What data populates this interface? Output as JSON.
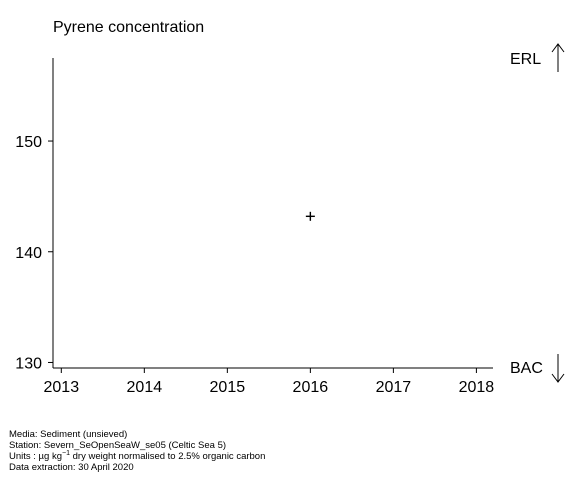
{
  "chart_data": {
    "type": "scatter",
    "title": "Pyrene concentration",
    "xlabel": "",
    "ylabel": "",
    "x_ticks": [
      2013,
      2014,
      2015,
      2016,
      2017,
      2018
    ],
    "y_ticks": [
      130,
      140,
      150
    ],
    "xlim": [
      2012.9,
      2018.2
    ],
    "ylim": [
      129.5,
      157.5
    ],
    "points": [
      {
        "x": 2016,
        "y": 143.2,
        "marker": "+"
      }
    ],
    "reference_lines": [
      {
        "label": "ERL",
        "direction": "up"
      },
      {
        "label": "BAC",
        "direction": "down"
      }
    ],
    "grid": false
  },
  "footer": {
    "media": "Media: Sediment (unsieved)",
    "station": "Station: Severn_SeOpenSeaW_se05 (Celtic Sea 5)",
    "units_prefix": "Units : µg kg",
    "units_exp": "−1",
    "units_suffix": " dry weight normalised to 2.5% organic carbon",
    "extraction": "Data extraction: 30 April 2020"
  }
}
